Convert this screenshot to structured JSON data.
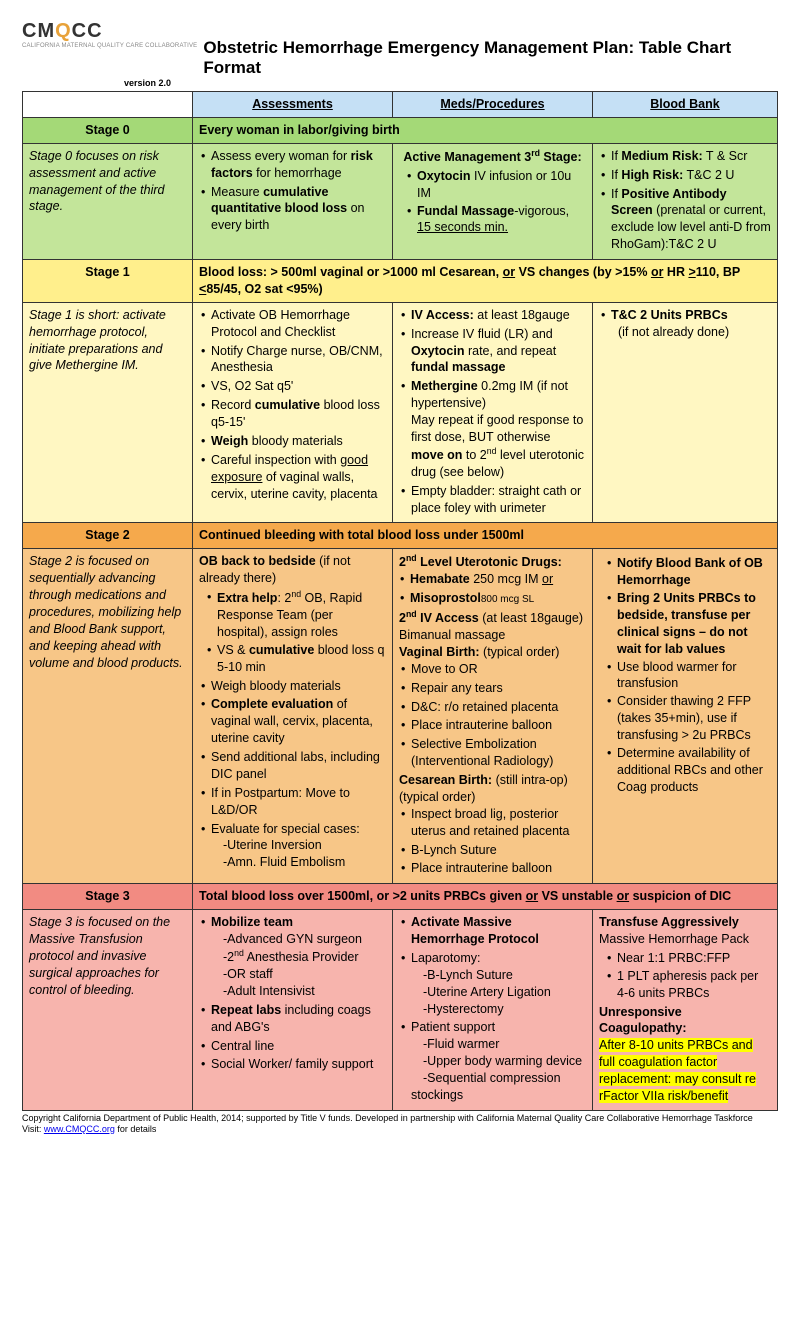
{
  "logo": {
    "text_pre": "CM",
    "q": "Q",
    "text_post": "CC",
    "sub": "CALIFORNIA MATERNAL QUALITY CARE COLLABORATIVE"
  },
  "title": "Obstetric Hemorrhage Emergency Management Plan: Table Chart Format",
  "version": "version 2.0",
  "columns": [
    "Assessments",
    "Meds/Procedures",
    "Blood Bank"
  ],
  "colors": {
    "header_bg": "#c5e0f5",
    "stage0_bg": "#a4d977",
    "stage0_body": "#c3e59a",
    "stage1_bg": "#ffef8c",
    "stage1_body": "#fff7c2",
    "stage2_bg": "#f5a94c",
    "stage2_body": "#f7c687",
    "stage3_bg": "#f28b82",
    "stage3_body": "#f7b4ad",
    "highlight": "#ffff00"
  },
  "col_widths": [
    "170px",
    "200px",
    "200px",
    "185px"
  ],
  "stage0": {
    "label": "Stage 0",
    "title": "Every woman in labor/giving birth",
    "desc": "Stage 0 focuses on risk assessment and active management of the third stage.",
    "assess": [
      {
        "pre": "Assess every woman for ",
        "b": "risk factors",
        "post": " for hemorrhage"
      },
      {
        "pre": "Measure ",
        "b": "cumulative quantitative blood loss",
        "post": " on every birth"
      }
    ],
    "meds": {
      "head": "Active Management 3<sup>rd</sup> Stage:",
      "items": [
        "<b>Oxytocin</b> IV infusion or 10u IM",
        "<b>Fundal Massage</b>-vigorous, <span class='u'>15 seconds min.</span>"
      ]
    },
    "blood": [
      "If <b>Medium Risk:</b> T & Scr",
      "If <b>High Risk:</b> T&C 2 U",
      "If <b>Positive Antibody Screen</b> (prenatal or current, exclude low level anti-D from RhoGam):T&C 2 U"
    ]
  },
  "stage1": {
    "label": "Stage 1",
    "title": "Blood loss: > 500ml vaginal or >1000 ml Cesarean, <span class='u'>or</span> VS changes (by >15% <span class='u'>or</span> HR <span class='u'>></span>110, BP <span class='u'><</span>85/45, O2 sat <95%)",
    "desc": "Stage 1 is short: activate hemorrhage protocol, initiate preparations and give Methergine IM.",
    "assess": [
      "Activate OB Hemorrhage Protocol and Checklist",
      "Notify Charge nurse, OB/CNM, Anesthesia",
      "VS, O2 Sat q5'",
      "Record <b>cumulative</b> blood loss q5-15'",
      "<b>Weigh</b> bloody materials",
      "Careful inspection with <span class='u'>good exposure</span> of vaginal walls, cervix, uterine cavity, placenta"
    ],
    "meds": [
      "<b>IV Access:</b> at least 18gauge",
      "Increase IV fluid (LR) and <b>Oxytocin</b> rate, and repeat <b>fundal massage</b>",
      "<b>Methergine</b> 0.2mg IM (if not hypertensive)<br>May repeat if good response to first dose, BUT otherwise <b>move on</b> to 2<sup>nd</sup> level uterotonic drug (see below)",
      "Empty bladder: straight cath or place foley with urimeter"
    ],
    "blood": [
      "<b>T&C 2 Units PRBCs</b><br>&nbsp;&nbsp;(if not already done)"
    ]
  },
  "stage2": {
    "label": "Stage 2",
    "title": "Continued bleeding with total blood loss under 1500ml",
    "desc": "Stage 2 is focused on sequentially advancing through medications and procedures, mobilizing help and Blood Bank support, and keeping ahead with volume and blood products.",
    "assess_html": "<b>OB back to bedside</b> (if not already there)<ul class='sub'><li><b>Extra help</b>: 2<sup>nd</sup> OB, Rapid Response Team (per hospital), assign roles</li><li>VS & <b>cumulative</b> blood loss q 5-10 min</li></ul><ul class='b'><li>Weigh bloody materials</li><li><b>Complete evaluation</b> of vaginal wall, cervix, placenta, uterine cavity</li><li>Send additional labs, including DIC panel</li><li>If in Postpartum: Move to L&D/OR</li><li>Evaluate for special cases:<br><span class='dash'>-Uterine Inversion</span><br><span class='dash'>-Amn. Fluid Embolism</span></li></ul>",
    "meds_html": "<b>2<sup>nd</sup> Level Uterotonic Drugs:</b><ul class='b' style='padding-left:1px'><li><b>Hemabate</b> 250 mcg IM <span class='u'>or</span></li><li><b>Misoprostol</b><span style='font-size:10px'>800 mcg SL</span></li></ul><b>2<sup>nd</sup> IV Access</b> (at least 18gauge)<br>Bimanual massage<br><b>Vaginal Birth:</b> (typical order)<ul class='b'><li>Move to OR</li><li>Repair any tears</li><li>D&C: r/o retained placenta</li><li>Place intrauterine balloon</li><li>Selective Embolization (Interventional Radiology)</li></ul><b>Cesarean Birth:</b> (still intra-op) (typical order)<ul class='b'><li>Inspect broad lig, posterior uterus and retained placenta</li><li>B-Lynch Suture</li><li>Place intrauterine balloon</li></ul>",
    "blood": [
      "<b>Notify Blood Bank of OB Hemorrhage</b>",
      "<b>Bring 2 Units PRBCs to bedside, transfuse per clinical signs – do not wait for lab values</b>",
      "Use blood warmer for transfusion",
      "Consider thawing 2 FFP (takes 35+min), use if transfusing > 2u PRBCs",
      "Determine availability of additional RBCs and other Coag products"
    ]
  },
  "stage3": {
    "label": "Stage 3",
    "title": "Total blood loss over 1500ml, or >2 units PRBCs given <span class='u'>or</span> VS unstable <span class='u'>or</span> suspicion of DIC",
    "desc": "Stage 3 is focused on the Massive Transfusion protocol and invasive surgical approaches for control of bleeding.",
    "assess_html": "<ul class='b'><li><b>Mobilize team</b><br><span class='dash'>-Advanced GYN surgeon</span><br><span class='dash'>-2<sup>nd</sup> Anesthesia Provider</span><br><span class='dash'>-OR staff</span><br><span class='dash'>-Adult Intensivist</span></li><li><b>Repeat labs</b> including coags and ABG's</li><li>Central line</li><li>Social Worker/ family support</li></ul>",
    "meds_html": "<ul class='b'><li><b>Activate Massive Hemorrhage Protocol</b></li><li>Laparotomy:<br><span class='dash'>-B-Lynch Suture</span><br><span class='dash'>-Uterine Artery Ligation</span><br><span class='dash'>-Hysterectomy</span></li><li>Patient support<br><span class='dash'>-Fluid warmer</span><br><span class='dash'>-Upper body warming device</span><br><span class='dash'>-Sequential compression stockings</span></li></ul>",
    "blood_html": "<b>Transfuse Aggressively</b><br>Massive Hemorrhage Pack<ul class='sub'><li>Near 1:1 PRBC:FFP</li><li>1 PLT apheresis pack per 4-6 units PRBCs</li></ul><b>Unresponsive Coagulopathy:</b><br><span class='hl'>After 8-10 units PRBCs and full coagulation factor replacement: may consult re rFactor VIIa risk/benefit</span>"
  },
  "footer": {
    "line1": "Copyright California Department of Public Health, 2014; supported by Title V funds. Developed in partnership  with California Maternal Quality Care Collaborative Hemorrhage Taskforce",
    "visit": "Visit: ",
    "url": "www.CMQCC.org",
    "post": " for details"
  }
}
